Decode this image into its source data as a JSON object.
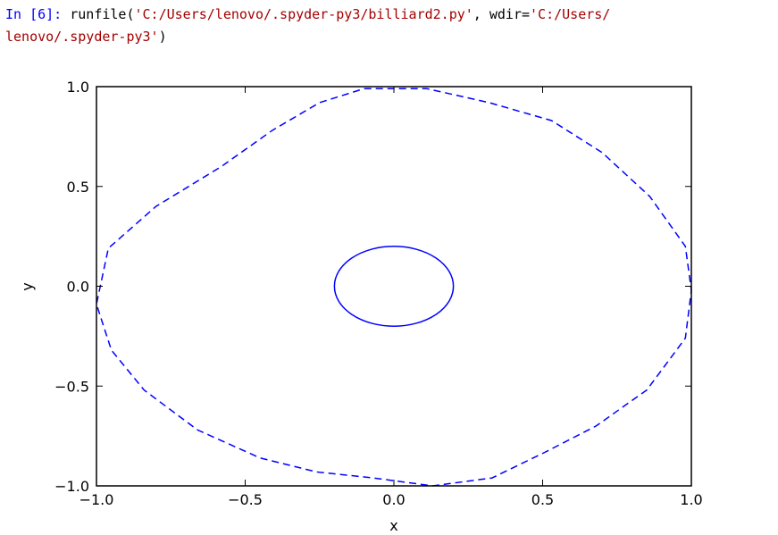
{
  "console": {
    "prompt": "In [6]:",
    "command_name": "runfile",
    "open_paren": "(",
    "arg1": "'C:/Users/lenovo/.spyder-py3/billiard2.py'",
    "separator": ", wdir=",
    "arg2_part1": "'C:/Users/",
    "arg2_part2": "lenovo/.spyder-py3'",
    "close_paren": ")"
  },
  "chart_data": {
    "type": "line",
    "title": "",
    "xlabel": "x",
    "ylabel": "y",
    "xlim": [
      -1.0,
      1.0
    ],
    "ylim": [
      -1.0,
      1.0
    ],
    "xticks": [
      "−1.0",
      "−0.5",
      "0.0",
      "0.5",
      "1.0"
    ],
    "yticks": [
      "1.0",
      "0.5",
      "0.0",
      "−0.5",
      "−1.0"
    ],
    "grid": false,
    "line_style": "dashed",
    "line_color": "#0000ff",
    "series": [
      {
        "values_x": [
          -0.1,
          0.11,
          0.32,
          0.53,
          0.7,
          0.86,
          0.98,
          1.0,
          0.98,
          0.85,
          0.68,
          0.51,
          0.33,
          0.13,
          -0.07,
          -0.26,
          -0.45,
          -0.66,
          -0.84,
          -0.95,
          -1.0,
          -0.96,
          -0.8,
          -0.58,
          -0.41,
          -0.25,
          -0.1
        ],
        "values_y": [
          0.99,
          0.99,
          0.92,
          0.83,
          0.67,
          0.45,
          0.2,
          -0.02,
          -0.26,
          -0.52,
          -0.7,
          -0.83,
          -0.96,
          -1.0,
          -0.96,
          -0.93,
          -0.86,
          -0.72,
          -0.52,
          -0.32,
          -0.09,
          0.19,
          0.4,
          0.6,
          0.78,
          0.92,
          0.99
        ]
      }
    ],
    "circle": {
      "cx": 0.0,
      "cy": 0.0,
      "r": 0.2
    }
  }
}
